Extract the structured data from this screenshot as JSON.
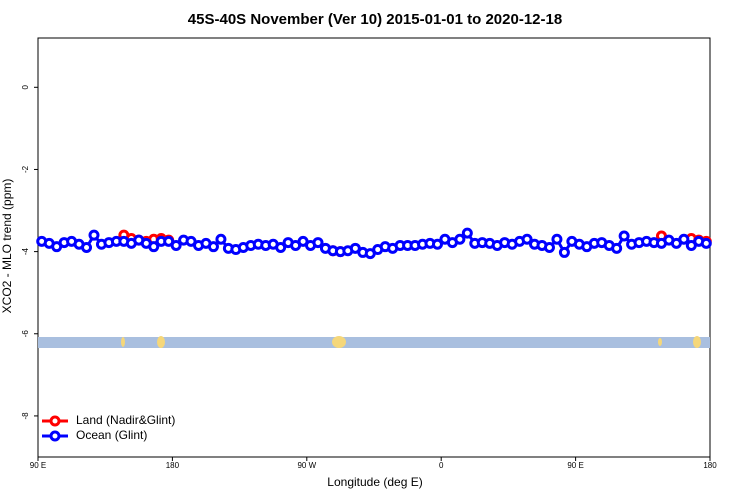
{
  "chart_data": {
    "type": "line",
    "title": "45S-40S November (Ver 10)   2015-01-01 to 2020-12-18",
    "x_label": "Longitude (deg E)",
    "y_label": "XCO2 - MLO trend (ppm)",
    "x": [
      92.5,
      97.5,
      102.5,
      107.5,
      112.5,
      117.5,
      122.5,
      127.5,
      132.5,
      137.5,
      142.5,
      147.5,
      152.5,
      157.5,
      162.5,
      167.5,
      172.5,
      177.5,
      182.5,
      187.5,
      192.5,
      197.5,
      202.5,
      207.5,
      212.5,
      217.5,
      222.5,
      227.5,
      232.5,
      237.5,
      242.5,
      247.5,
      252.5,
      257.5,
      262.5,
      267.5,
      272.5,
      277.5,
      282.5,
      287.5,
      292.5,
      297.5,
      302.5,
      307.5,
      312.5,
      317.5,
      322.5,
      327.5,
      332.5,
      337.5,
      342.5,
      347.5,
      352.5,
      357.5,
      362.5,
      367.5,
      372.5,
      377.5,
      382.5,
      387.5,
      392.5,
      397.5,
      402.5,
      407.5,
      412.5,
      417.5,
      422.5,
      427.5,
      432.5,
      437.5,
      442.5,
      447.5,
      452.5,
      457.5,
      462.5,
      467.5,
      472.5,
      477.5,
      482.5,
      487.5,
      492.5,
      497.5,
      502.5,
      507.5,
      512.5,
      517.5,
      522.5,
      527.5,
      532.5,
      537.5
    ],
    "series": [
      {
        "name": "Land (Nadir&Glint)",
        "color": "#ff0000",
        "values": [
          null,
          null,
          null,
          null,
          null,
          null,
          null,
          null,
          null,
          null,
          null,
          -3.6,
          -3.68,
          -3.72,
          -3.75,
          -3.7,
          -3.68,
          -3.72,
          null,
          null,
          null,
          null,
          null,
          null,
          null,
          null,
          null,
          null,
          null,
          null,
          null,
          null,
          null,
          null,
          null,
          null,
          null,
          null,
          null,
          -3.98,
          -4.0,
          null,
          null,
          null,
          null,
          null,
          null,
          null,
          null,
          null,
          null,
          null,
          null,
          null,
          null,
          null,
          null,
          null,
          null,
          null,
          null,
          null,
          null,
          null,
          null,
          null,
          null,
          null,
          null,
          null,
          null,
          null,
          null,
          null,
          null,
          null,
          null,
          null,
          null,
          null,
          null,
          null,
          null,
          -3.62,
          null,
          null,
          null,
          -3.68,
          -3.72,
          -3.75
        ]
      },
      {
        "name": "Ocean (Glint)",
        "color": "#0000ff",
        "values": [
          -3.75,
          -3.8,
          -3.88,
          -3.78,
          -3.75,
          -3.82,
          -3.9,
          -3.6,
          -3.82,
          -3.78,
          -3.75,
          -3.75,
          -3.8,
          -3.72,
          -3.8,
          -3.88,
          -3.75,
          -3.75,
          -3.85,
          -3.72,
          -3.75,
          -3.85,
          -3.8,
          -3.88,
          -3.7,
          -3.92,
          -3.95,
          -3.9,
          -3.85,
          -3.82,
          -3.85,
          -3.82,
          -3.9,
          -3.78,
          -3.85,
          -3.75,
          -3.85,
          -3.78,
          -3.92,
          -3.98,
          -4.0,
          -3.98,
          -3.92,
          -4.02,
          -4.05,
          -3.95,
          -3.88,
          -3.92,
          -3.85,
          -3.85,
          -3.85,
          -3.82,
          -3.8,
          -3.82,
          -3.7,
          -3.78,
          -3.7,
          -3.55,
          -3.8,
          -3.78,
          -3.8,
          -3.85,
          -3.78,
          -3.82,
          -3.75,
          -3.7,
          -3.82,
          -3.85,
          -3.9,
          -3.7,
          -4.02,
          -3.75,
          -3.82,
          -3.88,
          -3.8,
          -3.78,
          -3.85,
          -3.92,
          -3.62,
          -3.82,
          -3.78,
          -3.75,
          -3.78,
          -3.8,
          -3.72,
          -3.8,
          -3.7,
          -3.85,
          -3.75,
          -3.8
        ]
      }
    ],
    "xlim": [
      90,
      540
    ],
    "xticks": [
      {
        "value": 90,
        "label": "90 E"
      },
      180,
      {
        "value": 270,
        "label": "90 W"
      },
      {
        "value": 360,
        "label": "0"
      },
      {
        "value": 450,
        "label": "90 E"
      },
      {
        "value": 540,
        "label": "180"
      }
    ],
    "ylim": [
      -9,
      1.2
    ],
    "yticks": [
      0,
      -2,
      -4,
      -6,
      -8
    ],
    "legend": "bottom-left"
  }
}
